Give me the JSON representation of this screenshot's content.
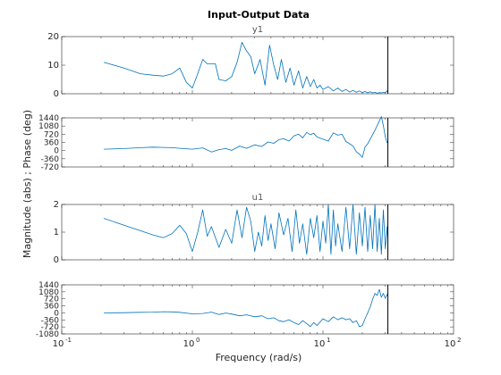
{
  "figure": {
    "title": "Input-Output Data",
    "xlabel": "Frequency  (rad/s)",
    "ylabel": "Magnitude (abs) ; Phase (deg)",
    "x_ticks": [
      "10",
      "10",
      "10",
      "10"
    ],
    "x_tick_exps": [
      "-1",
      "0",
      "1",
      "2"
    ],
    "colors": {
      "line": "#0072bd",
      "axes": "#262626",
      "tick_text": "#262626",
      "cursor": "#000000"
    }
  },
  "chart_data": [
    {
      "type": "line",
      "title": "y1",
      "xscale": "log",
      "xlim": [
        0.1,
        100
      ],
      "ylim": [
        0,
        20
      ],
      "yticks": [
        0,
        10,
        20
      ],
      "cursor_x": 31.4,
      "series": [
        {
          "x": [
            0.21,
            0.3,
            0.4,
            0.5,
            0.6,
            0.7,
            0.8,
            0.9,
            1.0,
            1.1,
            1.2,
            1.3,
            1.5,
            1.6,
            1.8,
            2.0,
            2.2,
            2.4,
            2.6,
            2.8,
            3.0,
            3.3,
            3.6,
            3.9,
            4.2,
            4.5,
            4.8,
            5.2,
            5.6,
            6,
            6.5,
            7,
            7.5,
            8,
            8.5,
            9,
            9.5,
            10,
            11,
            12,
            13,
            14,
            15,
            16,
            17,
            18,
            19,
            20,
            21,
            22,
            23,
            24,
            25,
            26,
            27,
            28,
            29,
            30,
            31,
            31.4
          ],
          "values": [
            11,
            9,
            7,
            6.5,
            6.2,
            7,
            9,
            4,
            2,
            7,
            12,
            10.5,
            10.5,
            5,
            4.5,
            6,
            11,
            18,
            15,
            13,
            7,
            12,
            3,
            17,
            10,
            5,
            12,
            4,
            9,
            3,
            8,
            2,
            6,
            2.5,
            5,
            2,
            3,
            1.5,
            2.5,
            1,
            2,
            0.8,
            1.5,
            0.6,
            1.2,
            0.5,
            1,
            0.4,
            0.8,
            0.3,
            0.7,
            0.3,
            0.5,
            0.2,
            0.4,
            0.3,
            0.5,
            0.3,
            1,
            0.5
          ]
        }
      ]
    },
    {
      "type": "line",
      "title": "",
      "xscale": "log",
      "xlim": [
        0.1,
        100
      ],
      "ylim": [
        -720,
        1440
      ],
      "yticks": [
        -720,
        -360,
        0,
        360,
        720,
        1080,
        1440
      ],
      "cursor_x": 31.4,
      "series": [
        {
          "x": [
            0.21,
            0.3,
            0.4,
            0.5,
            0.6,
            0.7,
            0.8,
            1.0,
            1.2,
            1.4,
            1.6,
            1.8,
            2.0,
            2.3,
            2.6,
            3.0,
            3.4,
            3.8,
            4.2,
            4.6,
            5,
            5.5,
            6,
            6.5,
            7,
            7.5,
            8,
            8.5,
            9,
            10,
            11,
            12,
            13,
            14,
            15,
            16,
            17,
            18,
            19,
            20,
            21,
            22,
            23,
            24,
            25,
            26,
            27,
            28,
            29,
            30,
            31,
            31.4
          ],
          "values": [
            60,
            90,
            130,
            150,
            140,
            130,
            100,
            60,
            120,
            -60,
            40,
            90,
            10,
            200,
            100,
            250,
            180,
            380,
            320,
            480,
            520,
            420,
            650,
            720,
            560,
            800,
            700,
            760,
            600,
            500,
            420,
            780,
            680,
            720,
            400,
            300,
            200,
            -50,
            -150,
            -300,
            150,
            300,
            500,
            700,
            900,
            1100,
            1300,
            1500,
            1100,
            600,
            350,
            400
          ]
        }
      ]
    },
    {
      "type": "line",
      "title": "u1",
      "xscale": "log",
      "xlim": [
        0.1,
        100
      ],
      "ylim": [
        0,
        2
      ],
      "yticks": [
        0,
        1,
        2
      ],
      "cursor_x": 31.4,
      "series": [
        {
          "x": [
            0.21,
            0.3,
            0.4,
            0.5,
            0.6,
            0.7,
            0.8,
            0.9,
            1.0,
            1.1,
            1.2,
            1.3,
            1.4,
            1.6,
            1.8,
            2.0,
            2.2,
            2.4,
            2.6,
            2.8,
            3.0,
            3.2,
            3.4,
            3.6,
            3.8,
            4.0,
            4.3,
            4.6,
            5,
            5.4,
            5.8,
            6.2,
            6.6,
            7,
            7.5,
            8,
            8.5,
            9,
            9.5,
            10,
            10.5,
            11,
            11.5,
            12,
            12.5,
            13,
            14,
            15,
            16,
            17,
            18,
            19,
            20,
            21,
            22,
            23,
            24,
            25,
            26,
            27,
            28,
            29,
            30,
            31,
            31.4
          ],
          "values": [
            1.5,
            1.25,
            1.05,
            0.9,
            0.8,
            0.95,
            1.25,
            0.95,
            0.3,
            1.0,
            1.8,
            0.85,
            1.2,
            0.45,
            1.1,
            0.6,
            1.8,
            0.8,
            1.9,
            1.4,
            0.3,
            1.0,
            0.5,
            1.6,
            0.7,
            1.3,
            0.4,
            1.7,
            0.9,
            1.5,
            0.3,
            1.8,
            0.6,
            1.3,
            0.2,
            1.5,
            0.8,
            1.6,
            0.3,
            1.4,
            0.6,
            2.0,
            0.2,
            1.8,
            0.5,
            1.3,
            0.3,
            1.9,
            0.4,
            2.0,
            0.2,
            1.7,
            0.5,
            1.9,
            0.3,
            1.6,
            0.4,
            2.0,
            0.3,
            1.5,
            0.2,
            1.8,
            0.4,
            1.2,
            0.6
          ]
        }
      ]
    },
    {
      "type": "line",
      "title": "",
      "xscale": "log",
      "xlim": [
        0.1,
        100
      ],
      "ylim": [
        -1080,
        1440
      ],
      "yticks": [
        -1080,
        -720,
        -360,
        0,
        360,
        720,
        1080,
        1440
      ],
      "cursor_x": 31.4,
      "series": [
        {
          "x": [
            0.21,
            0.3,
            0.4,
            0.5,
            0.6,
            0.7,
            0.8,
            1.0,
            1.2,
            1.4,
            1.6,
            1.8,
            2.0,
            2.3,
            2.6,
            3.0,
            3.4,
            3.8,
            4.2,
            4.6,
            5,
            5.5,
            6,
            6.5,
            7,
            7.5,
            8,
            8.5,
            9,
            10,
            11,
            12,
            13,
            14,
            15,
            16,
            17,
            18,
            19,
            20,
            21,
            22,
            23,
            24,
            25,
            26,
            27,
            28,
            29,
            30,
            31,
            31.4
          ],
          "values": [
            0,
            10,
            30,
            40,
            60,
            50,
            30,
            -50,
            -30,
            40,
            -80,
            -10,
            -60,
            -150,
            -100,
            -200,
            -150,
            -300,
            -250,
            -400,
            -450,
            -350,
            -500,
            -600,
            -400,
            -550,
            -700,
            -500,
            -650,
            -300,
            -450,
            -200,
            -350,
            -250,
            -350,
            -300,
            -500,
            -400,
            -700,
            -650,
            -300,
            0,
            300,
            700,
            1000,
            900,
            1200,
            800,
            1000,
            750,
            950,
            850
          ]
        }
      ]
    }
  ]
}
